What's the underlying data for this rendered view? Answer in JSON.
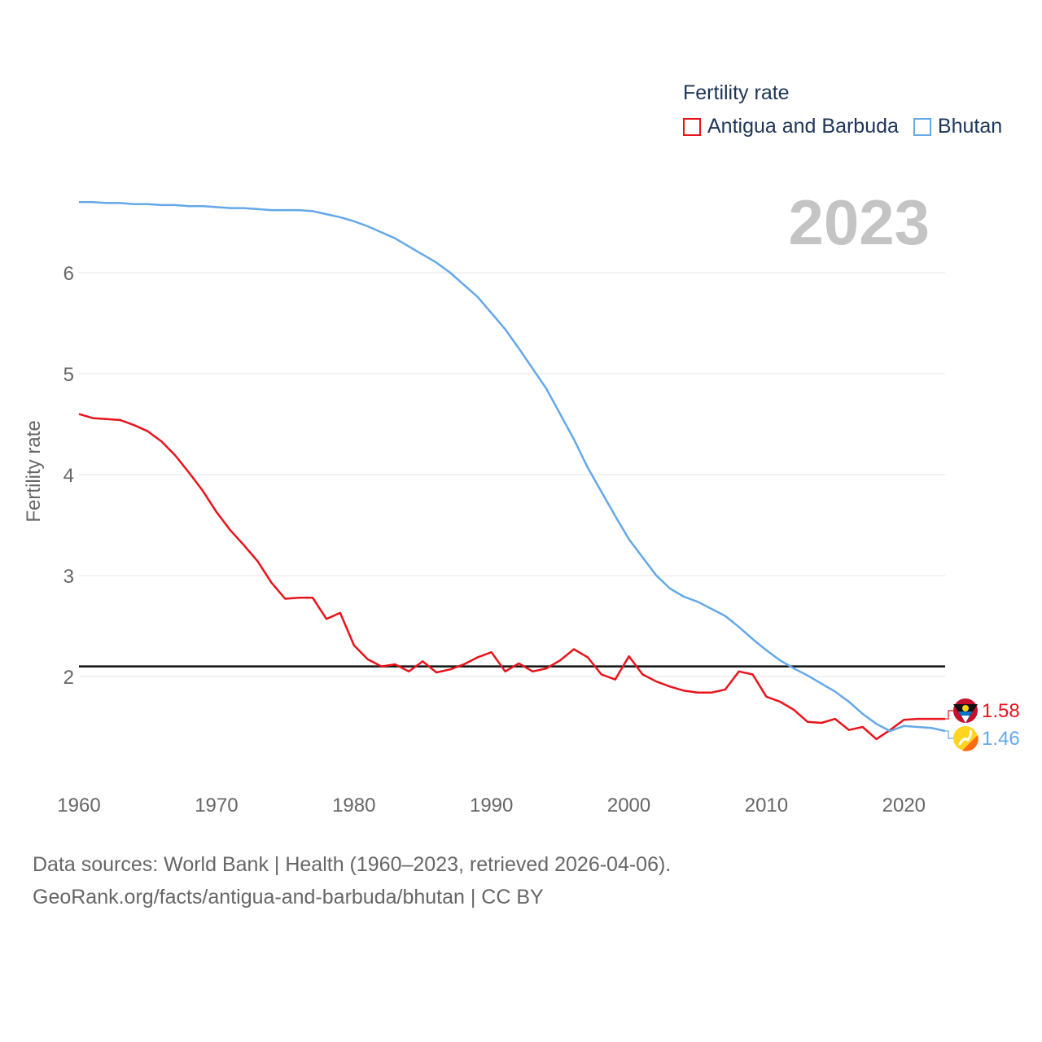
{
  "legend": {
    "title": "Fertility rate",
    "items": [
      {
        "name": "Antigua and Barbuda",
        "color": "#e8131b"
      },
      {
        "name": "Bhutan",
        "color": "#64a8e8"
      }
    ]
  },
  "year_label": "2023",
  "footer": {
    "line1": "Data sources: World Bank | Health (1960–2023, retrieved 2026-04-06).",
    "line2": "GeoRank.org/facts/antigua-and-barbuda/bhutan | CC BY"
  },
  "end_labels": {
    "antigua": "1.58",
    "bhutan": "1.46"
  },
  "flags": {
    "antigua": "antigua-and-barbuda-flag-icon",
    "bhutan": "bhutan-flag-icon"
  },
  "chart_data": {
    "type": "line",
    "ylabel": "Fertility rate",
    "xlabel": "",
    "xlim": [
      1960,
      2023
    ],
    "ylim": [
      1,
      7
    ],
    "x_ticks": [
      1960,
      1970,
      1980,
      1990,
      2000,
      2010,
      2020
    ],
    "y_ticks": [
      2,
      3,
      4,
      5,
      6
    ],
    "reference_line": 2.1,
    "x": [
      1960,
      1961,
      1962,
      1963,
      1964,
      1965,
      1966,
      1967,
      1968,
      1969,
      1970,
      1971,
      1972,
      1973,
      1974,
      1975,
      1976,
      1977,
      1978,
      1979,
      1980,
      1981,
      1982,
      1983,
      1984,
      1985,
      1986,
      1987,
      1988,
      1989,
      1990,
      1991,
      1992,
      1993,
      1994,
      1995,
      1996,
      1997,
      1998,
      1999,
      2000,
      2001,
      2002,
      2003,
      2004,
      2005,
      2006,
      2007,
      2008,
      2009,
      2010,
      2011,
      2012,
      2013,
      2014,
      2015,
      2016,
      2017,
      2018,
      2019,
      2020,
      2021,
      2022,
      2023
    ],
    "series": [
      {
        "name": "Antigua and Barbuda",
        "color": "#e8131b",
        "values": [
          4.6,
          4.56,
          4.55,
          4.54,
          4.49,
          4.43,
          4.33,
          4.19,
          4.02,
          3.84,
          3.63,
          3.45,
          3.3,
          3.14,
          2.93,
          2.77,
          2.78,
          2.78,
          2.57,
          2.63,
          2.31,
          2.17,
          2.1,
          2.12,
          2.05,
          2.15,
          2.04,
          2.07,
          2.12,
          2.19,
          2.24,
          2.05,
          2.13,
          2.05,
          2.08,
          2.16,
          2.27,
          2.19,
          2.02,
          1.97,
          2.2,
          2.02,
          1.95,
          1.9,
          1.86,
          1.84,
          1.84,
          1.87,
          2.05,
          2.02,
          1.8,
          1.75,
          1.67,
          1.55,
          1.54,
          1.58,
          1.47,
          1.5,
          1.38,
          1.47,
          1.57,
          1.58,
          1.58,
          1.58
        ]
      },
      {
        "name": "Bhutan",
        "color": "#64a8e8",
        "values": [
          6.7,
          6.7,
          6.69,
          6.69,
          6.68,
          6.68,
          6.67,
          6.67,
          6.66,
          6.66,
          6.65,
          6.64,
          6.64,
          6.63,
          6.62,
          6.62,
          6.62,
          6.61,
          6.58,
          6.55,
          6.51,
          6.46,
          6.4,
          6.34,
          6.26,
          6.18,
          6.1,
          6.0,
          5.88,
          5.76,
          5.6,
          5.44,
          5.25,
          5.05,
          4.85,
          4.6,
          4.35,
          4.07,
          3.83,
          3.59,
          3.36,
          3.18,
          3.0,
          2.87,
          2.79,
          2.74,
          2.67,
          2.6,
          2.49,
          2.37,
          2.26,
          2.16,
          2.08,
          2.01,
          1.93,
          1.85,
          1.75,
          1.63,
          1.53,
          1.46,
          1.51,
          1.5,
          1.49,
          1.46
        ]
      }
    ]
  }
}
